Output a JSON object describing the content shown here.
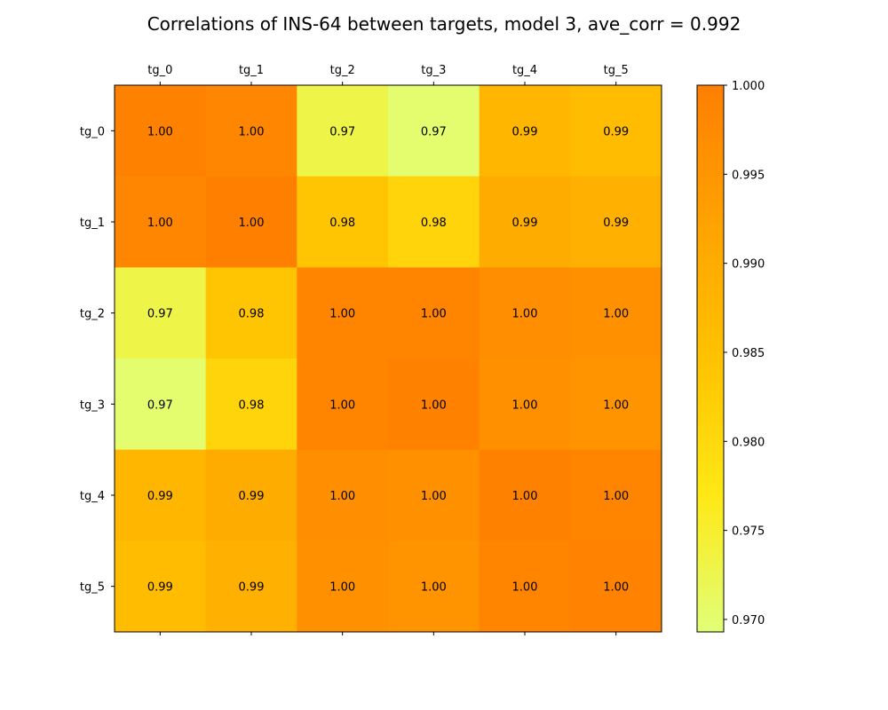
{
  "chart_data": {
    "type": "heatmap",
    "title": "Correlations of INS-64 between targets, model 3, ave_corr = 0.992",
    "x_labels": [
      "tg_0",
      "tg_1",
      "tg_2",
      "tg_3",
      "tg_4",
      "tg_5"
    ],
    "y_labels": [
      "tg_0",
      "tg_1",
      "tg_2",
      "tg_3",
      "tg_4",
      "tg_5"
    ],
    "values": [
      [
        0.9995,
        0.9985,
        0.973,
        0.97,
        0.9875,
        0.986
      ],
      [
        0.9985,
        0.9998,
        0.984,
        0.981,
        0.99,
        0.989
      ],
      [
        0.973,
        0.984,
        0.999,
        0.999,
        0.9965,
        0.996
      ],
      [
        0.97,
        0.981,
        0.999,
        0.9995,
        0.996,
        0.9955
      ],
      [
        0.9875,
        0.99,
        0.9965,
        0.996,
        0.9995,
        0.999
      ],
      [
        0.986,
        0.989,
        0.996,
        0.9955,
        0.999,
        0.9993
      ]
    ],
    "cell_labels": [
      [
        "1.00",
        "1.00",
        "0.97",
        "0.97",
        "0.99",
        "0.99"
      ],
      [
        "1.00",
        "1.00",
        "0.98",
        "0.98",
        "0.99",
        "0.99"
      ],
      [
        "0.97",
        "0.98",
        "1.00",
        "1.00",
        "1.00",
        "1.00"
      ],
      [
        "0.97",
        "0.98",
        "1.00",
        "1.00",
        "1.00",
        "1.00"
      ],
      [
        "0.99",
        "0.99",
        "1.00",
        "1.00",
        "1.00",
        "1.00"
      ],
      [
        "0.99",
        "0.99",
        "1.00",
        "1.00",
        "1.00",
        "1.00"
      ]
    ],
    "colorbar": {
      "min": 0.9693,
      "max": 1.0,
      "ticks": [
        0.97,
        0.975,
        0.98,
        0.985,
        0.99,
        0.995,
        1.0
      ],
      "tick_labels": [
        "0.970",
        "0.975",
        "0.980",
        "0.985",
        "0.990",
        "0.995",
        "1.000"
      ]
    },
    "colormap": [
      "#e0ff78",
      "#ffe816",
      "#ffc200",
      "#ffa200",
      "#ff7f00"
    ],
    "grid": false
  }
}
